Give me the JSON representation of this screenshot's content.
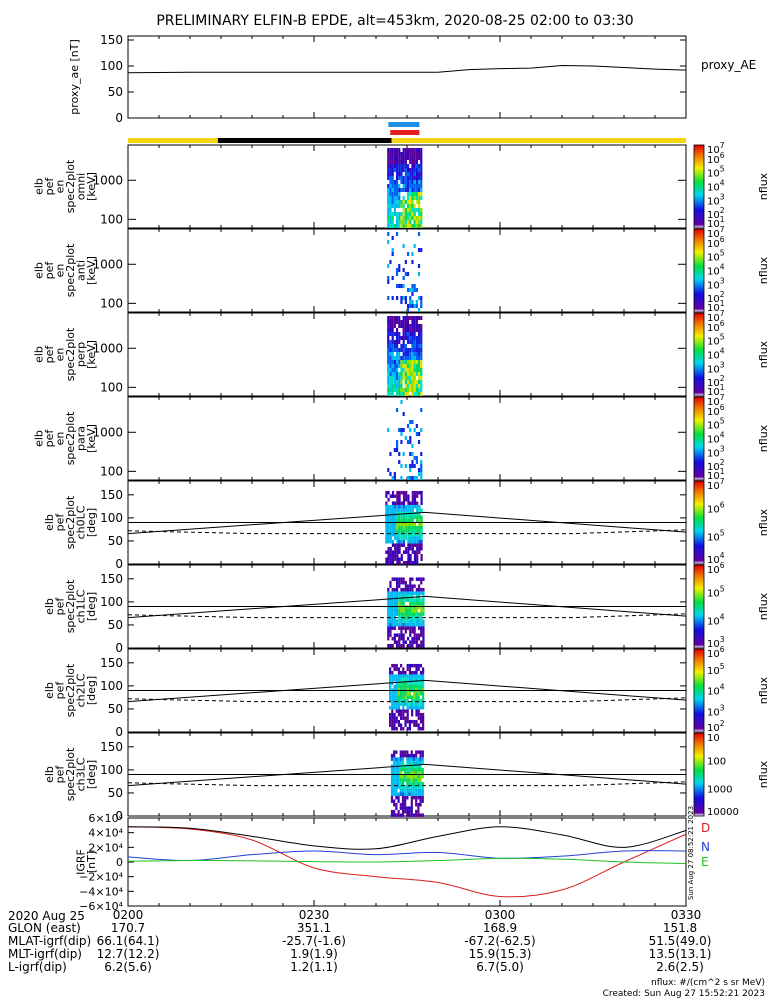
{
  "title": "PRELIMINARY ELFIN-B EPDE, alt=453km, 2020-08-25 02:00 to 03:30",
  "colors": {
    "sunlight_bar": "#f5d60f",
    "shadow_bar": "#000000",
    "science_zone_blue": "#1e8fe6",
    "science_zone_red": "#e61e1e",
    "igrf_d": "#d81e1e",
    "igrf_n": "#2040d8",
    "igrf_e": "#20c020"
  },
  "chart_data": [
    {
      "type": "line",
      "panel": "proxy_ae",
      "ylabel": "proxy_ae [nT]",
      "legend": "proxy_AE",
      "ylim": [
        0,
        150
      ],
      "yticks": [
        "150",
        "100",
        "50",
        "0"
      ],
      "x_minutes": [
        0,
        10,
        20,
        30,
        40,
        50,
        55,
        60,
        65,
        70,
        75,
        80,
        85,
        90
      ],
      "values": [
        87,
        88,
        88,
        88,
        88,
        88,
        93,
        95,
        96,
        101,
        100,
        97,
        94,
        92
      ]
    },
    {
      "type": "heatmap",
      "panel": "spec_omni",
      "ylabel_lines": [
        "elb",
        "pef",
        "en",
        "spec2plot",
        "omni",
        "[keV]"
      ],
      "yscale": "log",
      "yticks": [
        "1000",
        "100"
      ],
      "cbar_label": "nflux",
      "cbar_ticks": [
        "10^1",
        "10^2",
        "10^3",
        "10^4",
        "10^5",
        "10^6",
        "10^7"
      ]
    },
    {
      "type": "heatmap",
      "panel": "spec_anti",
      "ylabel_lines": [
        "elb",
        "pef",
        "en",
        "spec2plot",
        "anti",
        "[keV]"
      ],
      "yscale": "log",
      "yticks": [
        "1000",
        "100"
      ],
      "cbar_label": "nflux",
      "cbar_ticks": [
        "10^1",
        "10^2",
        "10^3",
        "10^4",
        "10^5",
        "10^6",
        "10^7"
      ]
    },
    {
      "type": "heatmap",
      "panel": "spec_perp",
      "ylabel_lines": [
        "elb",
        "pef",
        "en",
        "spec2plot",
        "perp",
        "[keV]"
      ],
      "yscale": "log",
      "yticks": [
        "1000",
        "100"
      ],
      "cbar_label": "nflux",
      "cbar_ticks": [
        "10^1",
        "10^2",
        "10^3",
        "10^4",
        "10^5",
        "10^6",
        "10^7"
      ]
    },
    {
      "type": "heatmap",
      "panel": "spec_para",
      "ylabel_lines": [
        "elb",
        "pef",
        "en",
        "spec2plot",
        "para",
        "[keV]"
      ],
      "yscale": "log",
      "yticks": [
        "1000",
        "100"
      ],
      "cbar_label": "nflux",
      "cbar_ticks": [
        "10^1",
        "10^2",
        "10^3",
        "10^4",
        "10^5",
        "10^6",
        "10^7"
      ]
    },
    {
      "type": "heatmap",
      "panel": "pa_ch0",
      "ylabel_lines": [
        "elb",
        "pef",
        "spec2plot",
        "ch0LC",
        "[deg]"
      ],
      "ylim": [
        0,
        180
      ],
      "yticks": [
        "150",
        "100",
        "50",
        "0"
      ],
      "cbar_label": "nflux",
      "cbar_ticks": [
        "10^4",
        "10^5",
        "10^6",
        "10^7"
      ]
    },
    {
      "type": "heatmap",
      "panel": "pa_ch1",
      "ylabel_lines": [
        "elb",
        "pef",
        "spec2plot",
        "ch1LC",
        "[deg]"
      ],
      "ylim": [
        0,
        180
      ],
      "yticks": [
        "150",
        "100",
        "50",
        "0"
      ],
      "cbar_label": "nflux",
      "cbar_ticks": [
        "10^3",
        "10^4",
        "10^5",
        "10^6"
      ]
    },
    {
      "type": "heatmap",
      "panel": "pa_ch2",
      "ylabel_lines": [
        "elb",
        "pef",
        "spec2plot",
        "ch2LC",
        "[deg]"
      ],
      "ylim": [
        0,
        180
      ],
      "yticks": [
        "150",
        "100",
        "50",
        "0"
      ],
      "cbar_label": "nflux",
      "cbar_ticks": [
        "10^2",
        "10^3",
        "10^4",
        "10^5",
        "10^6"
      ]
    },
    {
      "type": "heatmap",
      "panel": "pa_ch3",
      "ylabel_lines": [
        "elb",
        "pef",
        "spec2plot",
        "ch3LC",
        "[deg]"
      ],
      "ylim": [
        0,
        180
      ],
      "yticks": [
        "150",
        "100",
        "50",
        "0"
      ],
      "cbar_label": "nflux",
      "cbar_ticks": [
        "10000",
        "1000",
        "100",
        "10"
      ]
    },
    {
      "type": "line",
      "panel": "igrf",
      "ylabel_lines": [
        "IGRF",
        "[nT]"
      ],
      "ylim": [
        -60000,
        60000
      ],
      "yticks": [
        "6×10⁴",
        "4×10⁴",
        "2×10⁴",
        "0",
        "−2×10⁴",
        "−4×10⁴",
        "−6×10⁴"
      ],
      "x_minutes": [
        0,
        10,
        20,
        30,
        40,
        50,
        60,
        70,
        80,
        90
      ],
      "series": [
        {
          "name": "D",
          "values": [
            48000,
            45000,
            30000,
            -8000,
            -20000,
            -28000,
            -47000,
            -38000,
            0,
            38000
          ]
        },
        {
          "name": "N",
          "values": [
            7000,
            2000,
            10000,
            15000,
            10000,
            13000,
            5000,
            8000,
            15000,
            15000
          ]
        },
        {
          "name": "E",
          "values": [
            1000,
            2000,
            1500,
            500,
            0,
            2000,
            5000,
            4000,
            0,
            -2000
          ]
        },
        {
          "name": "",
          "values": [
            48000,
            46000,
            35000,
            22000,
            18000,
            35000,
            48000,
            37000,
            20000,
            43000
          ]
        }
      ]
    }
  ],
  "time_ticks": [
    "0200",
    "0230",
    "0300",
    "0330"
  ],
  "ephemeris": {
    "date_label": "2020 Aug 25",
    "rows": [
      {
        "label": "GLON (east)",
        "values": [
          "170.7",
          "351.1",
          "168.9",
          "151.8"
        ]
      },
      {
        "label": "MLAT-igrf(dip)",
        "values": [
          "66.1(64.1)",
          "-25.7(-1.6)",
          "-67.2(-62.5)",
          "51.5(49.0)"
        ]
      },
      {
        "label": "MLT-igrf(dip)",
        "values": [
          "12.7(12.2)",
          "1.9(1.9)",
          "15.9(15.3)",
          "13.5(13.1)"
        ]
      },
      {
        "label": "L-igrf(dip)",
        "values": [
          "6.2(5.6)",
          "1.2(1.1)",
          "6.7(5.0)",
          "2.6(2.5)"
        ]
      }
    ]
  },
  "footer": {
    "units": "nflux: #/(cm^2 s sr MeV)",
    "created": "Created: Sun Aug 27 15:52:21 2023",
    "side_stamp": "Sun Aug 27 08:52:21 2023"
  }
}
